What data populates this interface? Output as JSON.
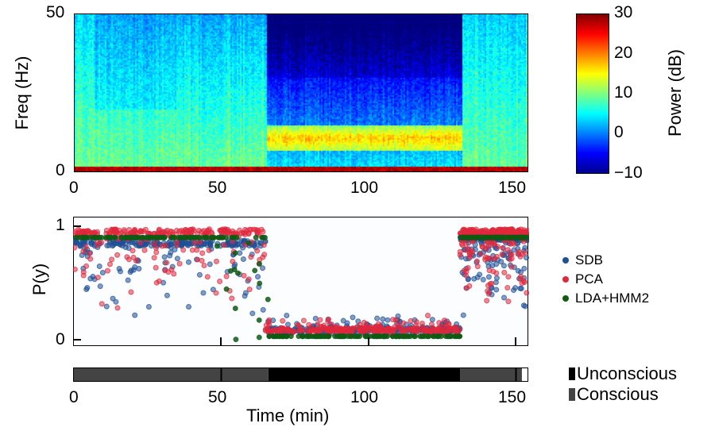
{
  "chart_data": [
    {
      "type": "heatmap",
      "xlabel": "",
      "ylabel": "Freq (Hz)",
      "xlim": [
        0,
        154
      ],
      "ylim": [
        0,
        50
      ],
      "xticks": [
        "0",
        "50",
        "100",
        "150"
      ],
      "yticks": [
        "0",
        "50"
      ],
      "colorbar": {
        "label": "Power (dB)",
        "range": [
          -10,
          30
        ],
        "ticks": [
          "30",
          "20",
          "10",
          "0",
          "−10"
        ],
        "colormap": "jet"
      },
      "description_segments": [
        {
          "t": [
            0,
            65
          ],
          "low_freq_power_db": 25,
          "high_freq_power_db": 5
        },
        {
          "t": [
            65,
            131
          ],
          "alpha_band_hz": [
            8,
            15
          ],
          "alpha_power_db": 22,
          "high_freq_power_db": -8
        },
        {
          "t": [
            131,
            154
          ],
          "low_freq_power_db": 25,
          "high_freq_power_db": 5
        }
      ]
    },
    {
      "type": "scatter",
      "ylabel": "P(y)",
      "xlim": [
        0,
        154
      ],
      "ylim": [
        0,
        1
      ],
      "yticks": [
        "0",
        "1"
      ],
      "legend": "right",
      "series": [
        {
          "name": "SDB",
          "color": "#1f4e96",
          "levels": [
            {
              "t": [
                0,
                65
              ],
              "p": 0.85
            },
            {
              "t": [
                65,
                131
              ],
              "p": 0.08
            },
            {
              "t": [
                131,
                154
              ],
              "p": 0.9
            }
          ]
        },
        {
          "name": "PCA",
          "color": "#e0283c",
          "levels": [
            {
              "t": [
                0,
                65
              ],
              "p": 0.95
            },
            {
              "t": [
                65,
                131
              ],
              "p": 0.08
            },
            {
              "t": [
                131,
                154
              ],
              "p": 0.95
            }
          ]
        },
        {
          "name": "LDA+HMM2",
          "color": "#0f5a14",
          "levels": [
            {
              "t": [
                0,
                65
              ],
              "p": 0.9
            },
            {
              "t": [
                65,
                131
              ],
              "p": 0.03
            },
            {
              "t": [
                131,
                154
              ],
              "p": 0.9
            }
          ]
        }
      ]
    },
    {
      "type": "bar",
      "xlabel": "Time (min)",
      "xticks": [
        "0",
        "50",
        "100",
        "150"
      ],
      "legend": [
        {
          "name": "Unconscious",
          "color": "#000000"
        },
        {
          "name": "Conscious",
          "color": "#444444"
        }
      ],
      "states": [
        {
          "t": [
            0,
            66
          ],
          "state": "Conscious"
        },
        {
          "t": [
            66,
            131
          ],
          "state": "Unconscious"
        },
        {
          "t": [
            131,
            152
          ],
          "state": "Conscious"
        }
      ]
    }
  ]
}
